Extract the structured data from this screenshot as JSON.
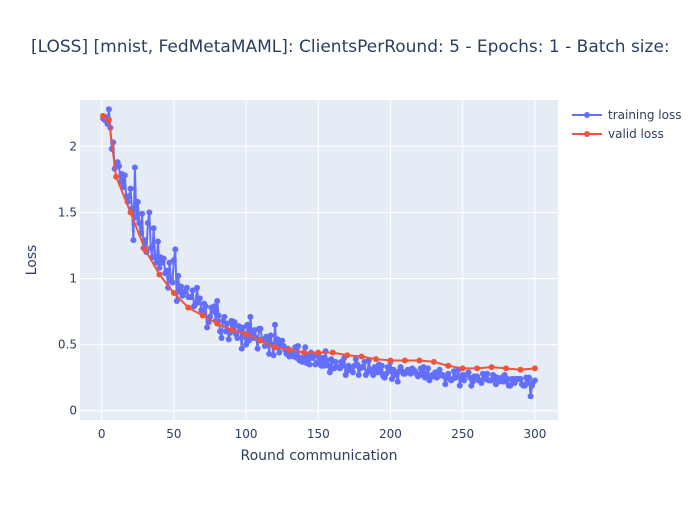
{
  "chart_data": {
    "type": "line",
    "title": "[LOSS] [mnist, FedMetaMAML]: ClientsPerRound: 5 - Epochs: 1 - Batch size:",
    "xlabel": "Round communication",
    "ylabel": "Loss",
    "xlim": [
      -15,
      316
    ],
    "ylim": [
      -0.07,
      2.35
    ],
    "xticks": [
      0,
      50,
      100,
      150,
      200,
      250,
      300
    ],
    "yticks": [
      0,
      0.5,
      1,
      1.5,
      2
    ],
    "ytick_labels": [
      "0",
      "0.5",
      "1",
      "1.5",
      "2"
    ],
    "grid": true,
    "plot_bgcolor": "#e5ecf6",
    "legend_position": "top-right",
    "series": [
      {
        "name": "training loss",
        "color": "#636efa",
        "x": [
          1,
          2,
          3,
          4,
          5,
          6,
          7,
          8,
          9,
          10,
          11,
          12,
          13,
          14,
          15,
          16,
          17,
          18,
          19,
          20,
          21,
          22,
          23,
          24,
          25,
          26,
          27,
          28,
          29,
          30,
          31,
          32,
          33,
          34,
          35,
          36,
          37,
          38,
          39,
          40,
          41,
          42,
          43,
          44,
          45,
          46,
          47,
          48,
          49,
          50,
          51,
          52,
          53,
          54,
          55,
          56,
          57,
          58,
          59,
          60,
          61,
          62,
          63,
          64,
          65,
          66,
          67,
          68,
          69,
          70,
          71,
          72,
          73,
          74,
          75,
          76,
          77,
          78,
          79,
          80,
          81,
          82,
          83,
          84,
          85,
          86,
          87,
          88,
          89,
          90,
          91,
          92,
          93,
          94,
          95,
          96,
          97,
          98,
          99,
          100,
          101,
          102,
          103,
          104,
          105,
          106,
          107,
          108,
          109,
          110,
          111,
          112,
          113,
          114,
          115,
          116,
          117,
          118,
          119,
          120,
          121,
          122,
          123,
          124,
          125,
          126,
          127,
          128,
          129,
          130,
          131,
          132,
          133,
          134,
          135,
          136,
          137,
          138,
          139,
          140,
          141,
          142,
          143,
          144,
          145,
          146,
          147,
          148,
          149,
          150,
          151,
          152,
          153,
          154,
          155,
          156,
          157,
          158,
          159,
          160,
          161,
          162,
          163,
          164,
          165,
          166,
          167,
          168,
          169,
          170,
          171,
          172,
          173,
          174,
          175,
          176,
          177,
          178,
          179,
          180,
          181,
          182,
          183,
          184,
          185,
          186,
          187,
          188,
          189,
          190,
          191,
          192,
          193,
          194,
          195,
          196,
          197,
          198,
          199,
          200,
          201,
          202,
          203,
          204,
          205,
          206,
          207,
          208,
          209,
          210,
          211,
          212,
          213,
          214,
          215,
          216,
          217,
          218,
          219,
          220,
          221,
          222,
          223,
          224,
          225,
          226,
          227,
          228,
          229,
          230,
          231,
          232,
          233,
          234,
          235,
          236,
          237,
          238,
          239,
          240,
          241,
          242,
          243,
          244,
          245,
          246,
          247,
          248,
          249,
          250,
          251,
          252,
          253,
          254,
          255,
          256,
          257,
          258,
          259,
          260,
          261,
          262,
          263,
          264,
          265,
          266,
          267,
          268,
          269,
          270,
          271,
          272,
          273,
          274,
          275,
          276,
          277,
          278,
          279,
          280,
          281,
          282,
          283,
          284,
          285,
          286,
          287,
          288,
          289,
          290,
          291,
          292,
          293,
          294,
          295,
          296,
          297,
          298,
          299,
          300
        ],
        "y": [
          2.21,
          2.2,
          2.22,
          2.17,
          2.28,
          2.14,
          1.98,
          2.03,
          1.83,
          1.86,
          1.88,
          1.85,
          1.73,
          1.79,
          1.69,
          1.78,
          1.62,
          1.58,
          1.62,
          1.68,
          1.53,
          1.29,
          1.84,
          1.46,
          1.58,
          1.42,
          1.34,
          1.49,
          1.23,
          1.29,
          1.2,
          1.42,
          1.5,
          1.23,
          1.16,
          1.38,
          1.16,
          1.12,
          1.28,
          1.08,
          1.16,
          1.12,
          1.15,
          1.04,
          1.06,
          0.93,
          1.12,
          0.99,
          0.97,
          1.14,
          1.22,
          0.83,
          1.02,
          0.9,
          0.94,
          0.87,
          0.9,
          0.9,
          0.93,
          0.86,
          0.86,
          0.86,
          0.91,
          0.79,
          0.81,
          0.93,
          0.82,
          0.85,
          0.76,
          0.75,
          0.81,
          0.79,
          0.63,
          0.67,
          0.71,
          0.78,
          0.75,
          0.79,
          0.68,
          0.83,
          0.72,
          0.6,
          0.55,
          0.68,
          0.71,
          0.6,
          0.66,
          0.54,
          0.59,
          0.68,
          0.62,
          0.67,
          0.58,
          0.55,
          0.64,
          0.61,
          0.47,
          0.63,
          0.56,
          0.5,
          0.65,
          0.53,
          0.71,
          0.58,
          0.55,
          0.61,
          0.55,
          0.47,
          0.62,
          0.62,
          0.54,
          0.54,
          0.49,
          0.56,
          0.54,
          0.43,
          0.57,
          0.5,
          0.42,
          0.65,
          0.48,
          0.54,
          0.44,
          0.51,
          0.53,
          0.49,
          0.46,
          0.43,
          0.47,
          0.41,
          0.45,
          0.42,
          0.41,
          0.48,
          0.4,
          0.49,
          0.38,
          0.4,
          0.37,
          0.39,
          0.48,
          0.36,
          0.42,
          0.35,
          0.44,
          0.4,
          0.41,
          0.35,
          0.36,
          0.43,
          0.37,
          0.34,
          0.4,
          0.34,
          0.45,
          0.38,
          0.34,
          0.29,
          0.39,
          0.32,
          0.32,
          0.37,
          0.33,
          0.33,
          0.32,
          0.37,
          0.34,
          0.4,
          0.27,
          0.3,
          0.34,
          0.32,
          0.32,
          0.29,
          0.34,
          0.39,
          0.35,
          0.27,
          0.32,
          0.33,
          0.33,
          0.37,
          0.27,
          0.29,
          0.38,
          0.31,
          0.3,
          0.27,
          0.33,
          0.32,
          0.29,
          0.35,
          0.29,
          0.34,
          0.26,
          0.25,
          0.28,
          0.33,
          0.3,
          0.37,
          0.24,
          0.31,
          0.27,
          0.29,
          0.22,
          0.3,
          0.33,
          0.3,
          0.28,
          0.28,
          0.29,
          0.31,
          0.3,
          0.28,
          0.32,
          0.31,
          0.3,
          0.28,
          0.26,
          0.27,
          0.32,
          0.27,
          0.33,
          0.25,
          0.28,
          0.32,
          0.23,
          0.26,
          0.27,
          0.26,
          0.29,
          0.25,
          0.26,
          0.31,
          0.27,
          0.27,
          0.26,
          0.2,
          0.25,
          0.28,
          0.24,
          0.23,
          0.24,
          0.3,
          0.25,
          0.26,
          0.31,
          0.19,
          0.25,
          0.27,
          0.23,
          0.27,
          0.27,
          0.29,
          0.25,
          0.19,
          0.22,
          0.26,
          0.25,
          0.26,
          0.23,
          0.23,
          0.21,
          0.28,
          0.26,
          0.24,
          0.28,
          0.23,
          0.23,
          0.23,
          0.27,
          0.26,
          0.2,
          0.25,
          0.22,
          0.23,
          0.25,
          0.22,
          0.27,
          0.22,
          0.24,
          0.19,
          0.19,
          0.24,
          0.24,
          0.21,
          0.24,
          0.24,
          0.24,
          0.24,
          0.2,
          0.19,
          0.19,
          0.25,
          0.21,
          0.25,
          0.11,
          0.19,
          0.22,
          0.23
        ]
      },
      {
        "name": "valid loss",
        "color": "#ef553b",
        "x": [
          1,
          5,
          10,
          20,
          30,
          40,
          50,
          60,
          70,
          80,
          90,
          100,
          110,
          120,
          130,
          140,
          150,
          160,
          170,
          180,
          190,
          200,
          210,
          220,
          230,
          240,
          250,
          260,
          270,
          280,
          290,
          300
        ],
        "y": [
          2.23,
          2.2,
          1.77,
          1.5,
          1.22,
          1.03,
          0.89,
          0.78,
          0.72,
          0.66,
          0.61,
          0.58,
          0.53,
          0.48,
          0.46,
          0.44,
          0.44,
          0.44,
          0.42,
          0.41,
          0.39,
          0.38,
          0.38,
          0.38,
          0.37,
          0.34,
          0.32,
          0.32,
          0.33,
          0.32,
          0.31,
          0.32
        ]
      }
    ]
  }
}
